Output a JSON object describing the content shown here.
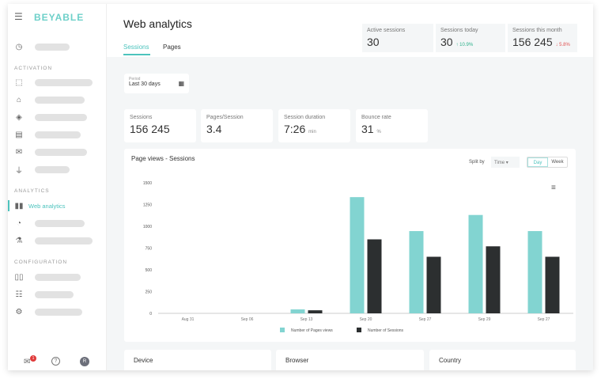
{
  "sidebar": {
    "logo": "BEYABLE",
    "sections": [
      "ACTIVATION",
      "ANALYTICS",
      "CONFIGURATION"
    ],
    "active_item": "Web analytics",
    "badge": "1",
    "avatar": "R"
  },
  "header": {
    "title": "Web analytics",
    "tabs": [
      "Sessions",
      "Pages"
    ],
    "kpis": [
      {
        "label": "Active sessions",
        "value": "30"
      },
      {
        "label": "Sessions today",
        "value": "30",
        "delta": "↑ 10.9%",
        "delta_color": "#2bb08a"
      },
      {
        "label": "Sessions this month",
        "value": "156 245",
        "delta": "↓ 5.8%",
        "delta_color": "#e05252"
      }
    ]
  },
  "period": {
    "label": "Period",
    "value": "Last 30 days"
  },
  "stats": [
    {
      "label": "Sessions",
      "value": "156 245",
      "unit": ""
    },
    {
      "label": "Pages/Session",
      "value": "3.4",
      "unit": ""
    },
    {
      "label": "Session duration",
      "value": "7:26",
      "unit": "min"
    },
    {
      "label": "Bounce rate",
      "value": "31",
      "unit": "%"
    }
  ],
  "chart_card": {
    "title": "Page views - Sessions",
    "split_label": "Split by",
    "split_value": "Time",
    "toggle": [
      "Day",
      "Week"
    ]
  },
  "chart_data": {
    "type": "bar",
    "categories": [
      "Aug 31",
      "Sep 06",
      "Sep 13",
      "Sep 20",
      "Sep 27",
      "Sep 29",
      "Sep 27"
    ],
    "series": [
      {
        "name": "Number of Pages views",
        "color": "#82d4d1",
        "values": [
          0,
          0,
          45,
          1335,
          945,
          1130,
          945
        ]
      },
      {
        "name": "Number of Sessions",
        "color": "#2c2f30",
        "values": [
          0,
          0,
          35,
          850,
          650,
          770,
          650
        ]
      }
    ],
    "ylim": [
      0,
      1500
    ],
    "yticks": [
      0,
      250,
      500,
      750,
      1000,
      1250,
      1500
    ],
    "legend": "bottom",
    "grid": false
  },
  "bottom": [
    "Device",
    "Browser",
    "Country"
  ]
}
